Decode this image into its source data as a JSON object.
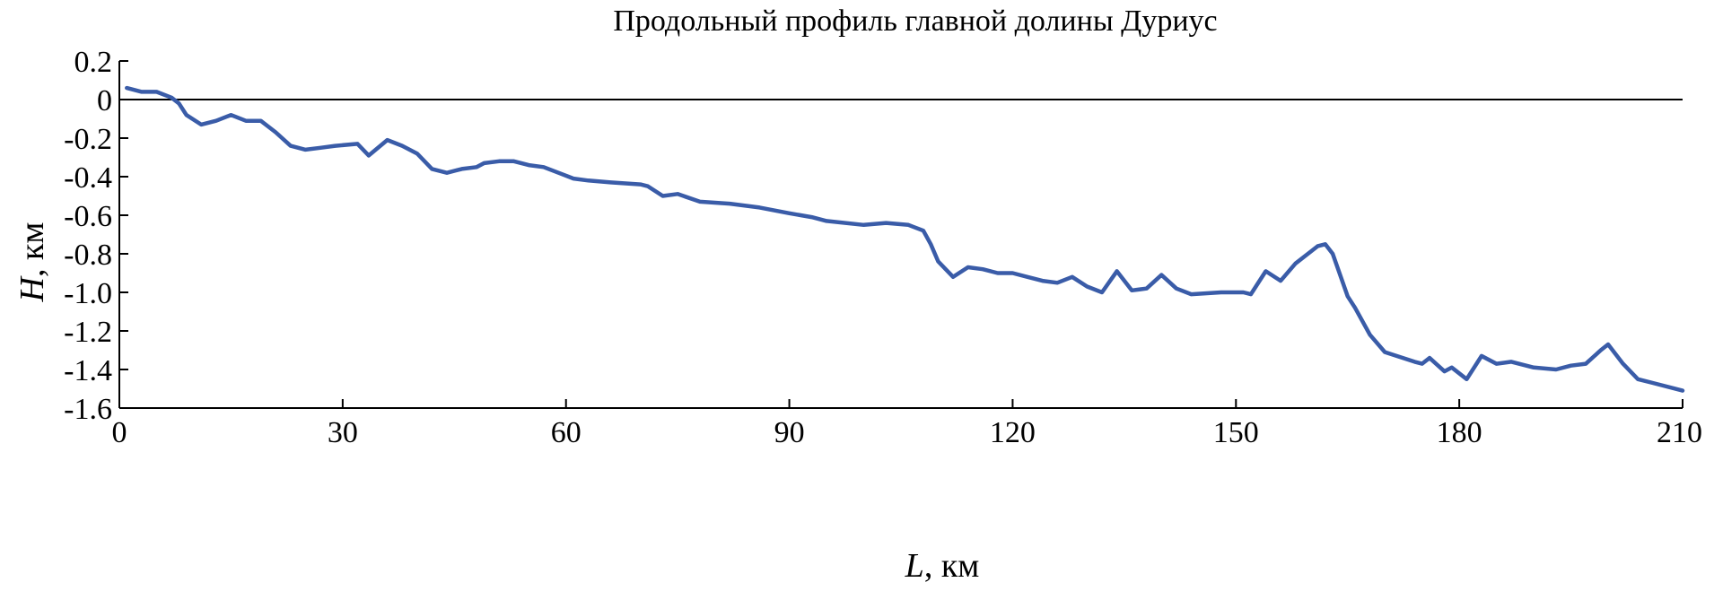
{
  "chart_data": {
    "type": "line",
    "title": "Продольный профиль главной долины Дуриус",
    "xlabel_var": "L",
    "xlabel_unit": ", км",
    "ylabel_var": "H",
    "ylabel_unit": ", км",
    "xlim": [
      0,
      210
    ],
    "ylim": [
      -1.6,
      0.2
    ],
    "x_ticks": [
      0,
      30,
      60,
      90,
      120,
      150,
      180,
      210
    ],
    "x_tick_labels": [
      "0",
      "30",
      "60",
      "90",
      "120",
      "150",
      "180",
      "210"
    ],
    "y_ticks": [
      0.2,
      0,
      -0.2,
      -0.4,
      -0.6,
      -0.8,
      -1.0,
      -1.2,
      -1.4,
      -1.6
    ],
    "y_tick_labels": [
      "0.2",
      "0",
      "-0.2",
      "-0.4",
      "-0.6",
      "-0.8",
      "-1.0",
      "-1.2",
      "-1.4",
      "-1.6"
    ],
    "reference_line_y": 0,
    "color": "#3a5ca8",
    "series": [
      {
        "x": [
          1,
          3,
          5,
          7,
          8,
          9,
          11,
          13,
          15,
          17,
          19,
          21,
          23,
          25,
          27,
          29,
          32,
          33.5,
          36,
          38,
          40,
          42,
          44,
          46,
          48,
          49,
          51,
          53,
          55,
          57,
          59,
          61,
          63,
          66,
          70,
          71,
          73,
          75,
          78,
          82,
          86,
          90,
          93,
          95,
          100,
          103,
          106,
          108,
          109,
          110,
          112,
          114,
          116,
          118,
          120,
          124,
          126,
          128,
          130,
          132,
          134,
          136,
          138,
          140,
          142,
          144,
          148,
          151,
          152,
          154,
          156,
          158,
          160,
          161,
          162,
          163,
          165,
          166,
          168,
          170,
          174,
          175,
          176,
          178,
          179,
          181,
          183,
          185,
          187,
          190,
          193,
          195,
          197,
          199,
          200,
          202,
          204,
          206,
          210
        ],
        "y": [
          0.06,
          0.04,
          0.04,
          0.01,
          -0.02,
          -0.08,
          -0.13,
          -0.11,
          -0.08,
          -0.11,
          -0.11,
          -0.17,
          -0.24,
          -0.26,
          -0.25,
          -0.24,
          -0.23,
          -0.29,
          -0.21,
          -0.24,
          -0.28,
          -0.36,
          -0.38,
          -0.36,
          -0.35,
          -0.33,
          -0.32,
          -0.32,
          -0.34,
          -0.35,
          -0.38,
          -0.41,
          -0.42,
          -0.43,
          -0.44,
          -0.45,
          -0.5,
          -0.49,
          -0.53,
          -0.54,
          -0.56,
          -0.59,
          -0.61,
          -0.63,
          -0.65,
          -0.64,
          -0.65,
          -0.68,
          -0.75,
          -0.84,
          -0.92,
          -0.87,
          -0.88,
          -0.9,
          -0.9,
          -0.94,
          -0.95,
          -0.92,
          -0.97,
          -1.0,
          -0.89,
          -0.99,
          -0.98,
          -0.91,
          -0.98,
          -1.01,
          -1.0,
          -1.0,
          -1.01,
          -0.89,
          -0.94,
          -0.85,
          -0.79,
          -0.76,
          -0.75,
          -0.8,
          -1.02,
          -1.08,
          -1.22,
          -1.31,
          -1.36,
          -1.37,
          -1.34,
          -1.41,
          -1.39,
          -1.45,
          -1.33,
          -1.37,
          -1.36,
          -1.39,
          -1.4,
          -1.38,
          -1.37,
          -1.3,
          -1.27,
          -1.37,
          -1.45,
          -1.47,
          -1.51
        ]
      }
    ]
  }
}
